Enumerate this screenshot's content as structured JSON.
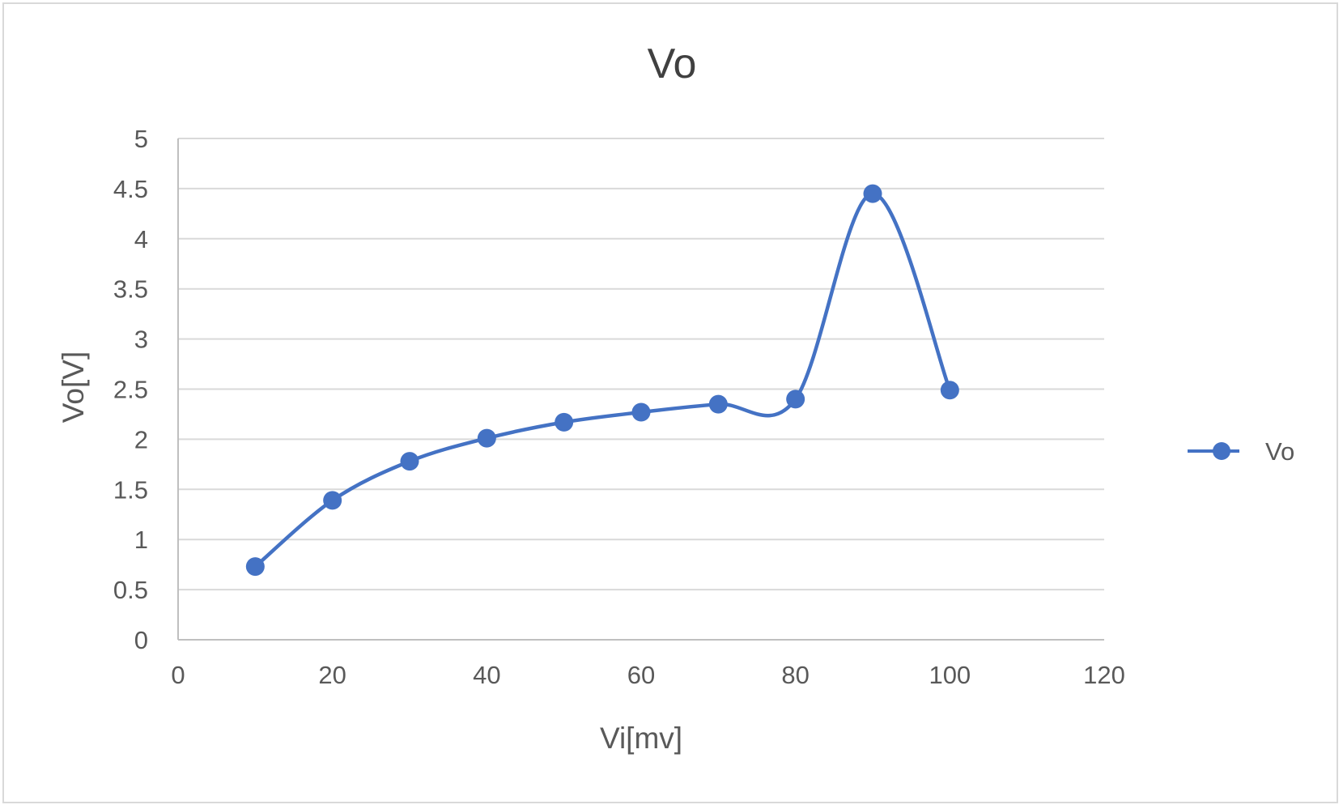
{
  "chart_data": {
    "type": "scatter",
    "title": "Vo",
    "xlabel": "Vi[mv]",
    "ylabel": "Vo[V]",
    "xlim": [
      0,
      120
    ],
    "ylim": [
      0,
      5
    ],
    "xticks": [
      0,
      20,
      40,
      60,
      80,
      100,
      120
    ],
    "yticks": [
      0,
      0.5,
      1,
      1.5,
      2,
      2.5,
      3,
      3.5,
      4,
      4.5,
      5
    ],
    "grid": "horizontal",
    "legend_position": "right",
    "smoothed_lines": true,
    "series": [
      {
        "name": "Vo",
        "color": "#4472c4",
        "x": [
          10,
          20,
          30,
          40,
          50,
          60,
          70,
          80,
          90,
          100
        ],
        "y": [
          0.73,
          1.39,
          1.78,
          2.01,
          2.17,
          2.27,
          2.35,
          2.4,
          4.45,
          2.49
        ]
      }
    ]
  }
}
